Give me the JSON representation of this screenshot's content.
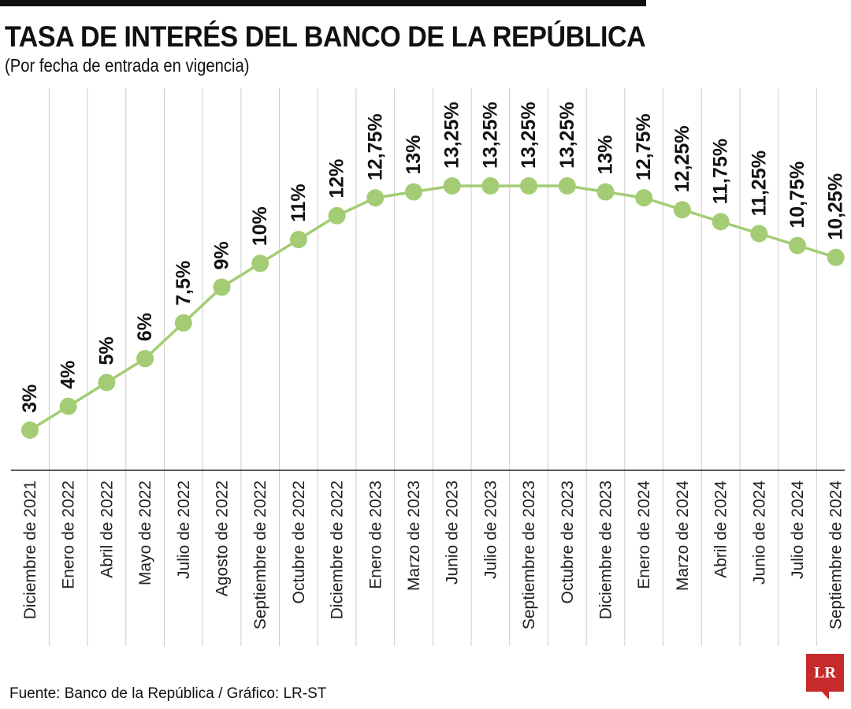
{
  "header": {
    "title": "TASA DE INTERÉS DEL BANCO DE LA REPÚBLICA",
    "subtitle": "(Por fecha de entrada en vigencia)"
  },
  "footer": {
    "source": "Fuente: Banco de la República / Gráfico: LR-ST",
    "logo_text": "LR"
  },
  "colors": {
    "series": "#a4cc74",
    "logo": "#c62a2a",
    "grid": "#cccccc"
  },
  "chart_data": {
    "type": "line",
    "title": "TASA DE INTERÉS DEL BANCO DE LA REPÚBLICA",
    "subtitle": "(Por fecha de entrada en vigencia)",
    "xlabel": "",
    "ylabel": "",
    "grid": "vertical",
    "categories": [
      "Diciembre de 2021",
      "Enero de 2022",
      "Abril de 2022",
      "Mayo de 2022",
      "Julio de 2022",
      "Agosto de 2022",
      "Septiembre de 2022",
      "Octubre de 2022",
      "Diciembre de 2022",
      "Enero de 2023",
      "Marzo de 2023",
      "Junio de 2023",
      "Julio de 2023",
      "Septiembre de 2023",
      "Octubre de 2023",
      "Diciembre de 2023",
      "Enero de 2024",
      "Marzo de 2024",
      "Abril de 2024",
      "Junio de 2024",
      "Julio de 2024",
      "Septiembre de 2024"
    ],
    "values": [
      3,
      4,
      5,
      6,
      7.5,
      9,
      10,
      11,
      12,
      12.75,
      13,
      13.25,
      13.25,
      13.25,
      13.25,
      13,
      12.75,
      12.25,
      11.75,
      11.25,
      10.75,
      10.25
    ],
    "labels": [
      "3%",
      "4%",
      "5%",
      "6%",
      "7,5%",
      "9%",
      "10%",
      "11%",
      "12%",
      "12,75%",
      "13%",
      "13,25%",
      "13,25%",
      "13,25%",
      "13,25%",
      "13%",
      "12,75%",
      "12,25%",
      "11,75%",
      "11,25%",
      "10,75%",
      "10,25%"
    ],
    "ylim": [
      3,
      13.25
    ]
  }
}
